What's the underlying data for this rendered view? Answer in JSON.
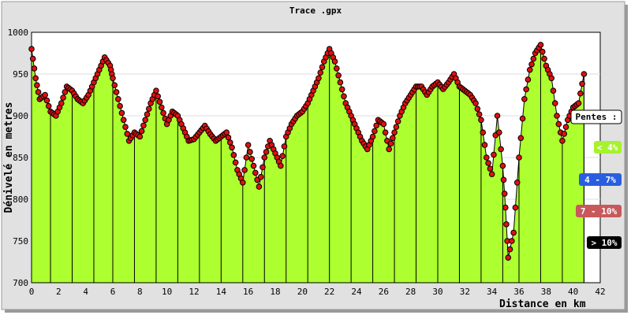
{
  "colors": {
    "panel": "#e1e1e1",
    "plot_bg": "#ffffff",
    "fill": "#adff2f",
    "marker": "#e01010",
    "grid": "#dddddd",
    "legend_green": "#a6f22c",
    "legend_blue": "#2a5ee0",
    "legend_red": "#c8585c",
    "legend_black": "#000000"
  },
  "chart_data": {
    "type": "area",
    "title": "Trace .gpx",
    "xlabel": "Distance en km",
    "ylabel": "Dénivelé en metres",
    "xlim": [
      0,
      42
    ],
    "ylim": [
      700,
      1000
    ],
    "xticks": [
      "0",
      "2",
      "4",
      "6",
      "8",
      "10",
      "12",
      "14",
      "16",
      "18",
      "20",
      "22",
      "24",
      "26",
      "28",
      "30",
      "32",
      "34",
      "36",
      "38",
      "40",
      "42"
    ],
    "yticks": [
      "700",
      "750",
      "800",
      "850",
      "900",
      "950",
      "1000"
    ],
    "grid": "horizontal",
    "legend": {
      "title": "Pentes :",
      "position": "right",
      "items": [
        {
          "label": "< 4%",
          "color": "green"
        },
        {
          "label": "4 - 7%",
          "color": "blue"
        },
        {
          "label": "7 - 10%",
          "color": "red"
        },
        {
          "label": "> 10%",
          "color": "black"
        }
      ]
    },
    "series": [
      {
        "x": [
          0.0,
          0.3,
          0.6,
          1.0,
          1.4,
          1.8,
          2.2,
          2.6,
          3.0,
          3.4,
          3.8,
          4.2,
          4.6,
          5.0,
          5.4,
          5.8,
          6.0,
          6.4,
          6.8,
          7.2,
          7.6,
          8.0,
          8.4,
          8.8,
          9.2,
          9.6,
          10.0,
          10.4,
          10.8,
          11.2,
          11.6,
          12.0,
          12.4,
          12.8,
          13.2,
          13.6,
          14.0,
          14.4,
          14.8,
          15.2,
          15.6,
          16.0,
          16.4,
          16.8,
          17.2,
          17.6,
          18.0,
          18.4,
          18.8,
          19.2,
          19.6,
          20.0,
          20.4,
          20.8,
          21.2,
          21.6,
          22.0,
          22.4,
          22.8,
          23.2,
          23.6,
          24.0,
          24.4,
          24.8,
          25.2,
          25.6,
          26.0,
          26.4,
          26.8,
          27.2,
          27.6,
          28.0,
          28.4,
          28.8,
          29.2,
          29.6,
          30.0,
          30.4,
          30.8,
          31.2,
          31.6,
          32.0,
          32.4,
          32.8,
          33.2,
          33.6,
          34.0,
          34.4,
          34.8,
          35.0,
          35.2,
          35.6,
          36.0,
          36.4,
          36.8,
          37.2,
          37.6,
          38.0,
          38.4,
          38.8,
          39.2,
          39.6,
          40.0,
          40.4,
          40.8
        ],
        "y": [
          980,
          945,
          920,
          925,
          905,
          900,
          915,
          935,
          930,
          920,
          915,
          925,
          940,
          955,
          970,
          960,
          945,
          920,
          895,
          870,
          880,
          875,
          895,
          915,
          930,
          910,
          890,
          905,
          900,
          885,
          870,
          872,
          880,
          888,
          878,
          870,
          875,
          880,
          862,
          835,
          820,
          865,
          840,
          815,
          850,
          870,
          855,
          840,
          875,
          890,
          900,
          905,
          915,
          930,
          945,
          965,
          980,
          965,
          940,
          915,
          900,
          885,
          870,
          860,
          875,
          895,
          890,
          860,
          880,
          900,
          915,
          925,
          935,
          935,
          925,
          935,
          940,
          932,
          940,
          950,
          935,
          930,
          925,
          915,
          895,
          850,
          830,
          900,
          840,
          790,
          730,
          760,
          850,
          920,
          955,
          975,
          985,
          960,
          945,
          900,
          870,
          895,
          910,
          915,
          950
        ]
      }
    ]
  }
}
